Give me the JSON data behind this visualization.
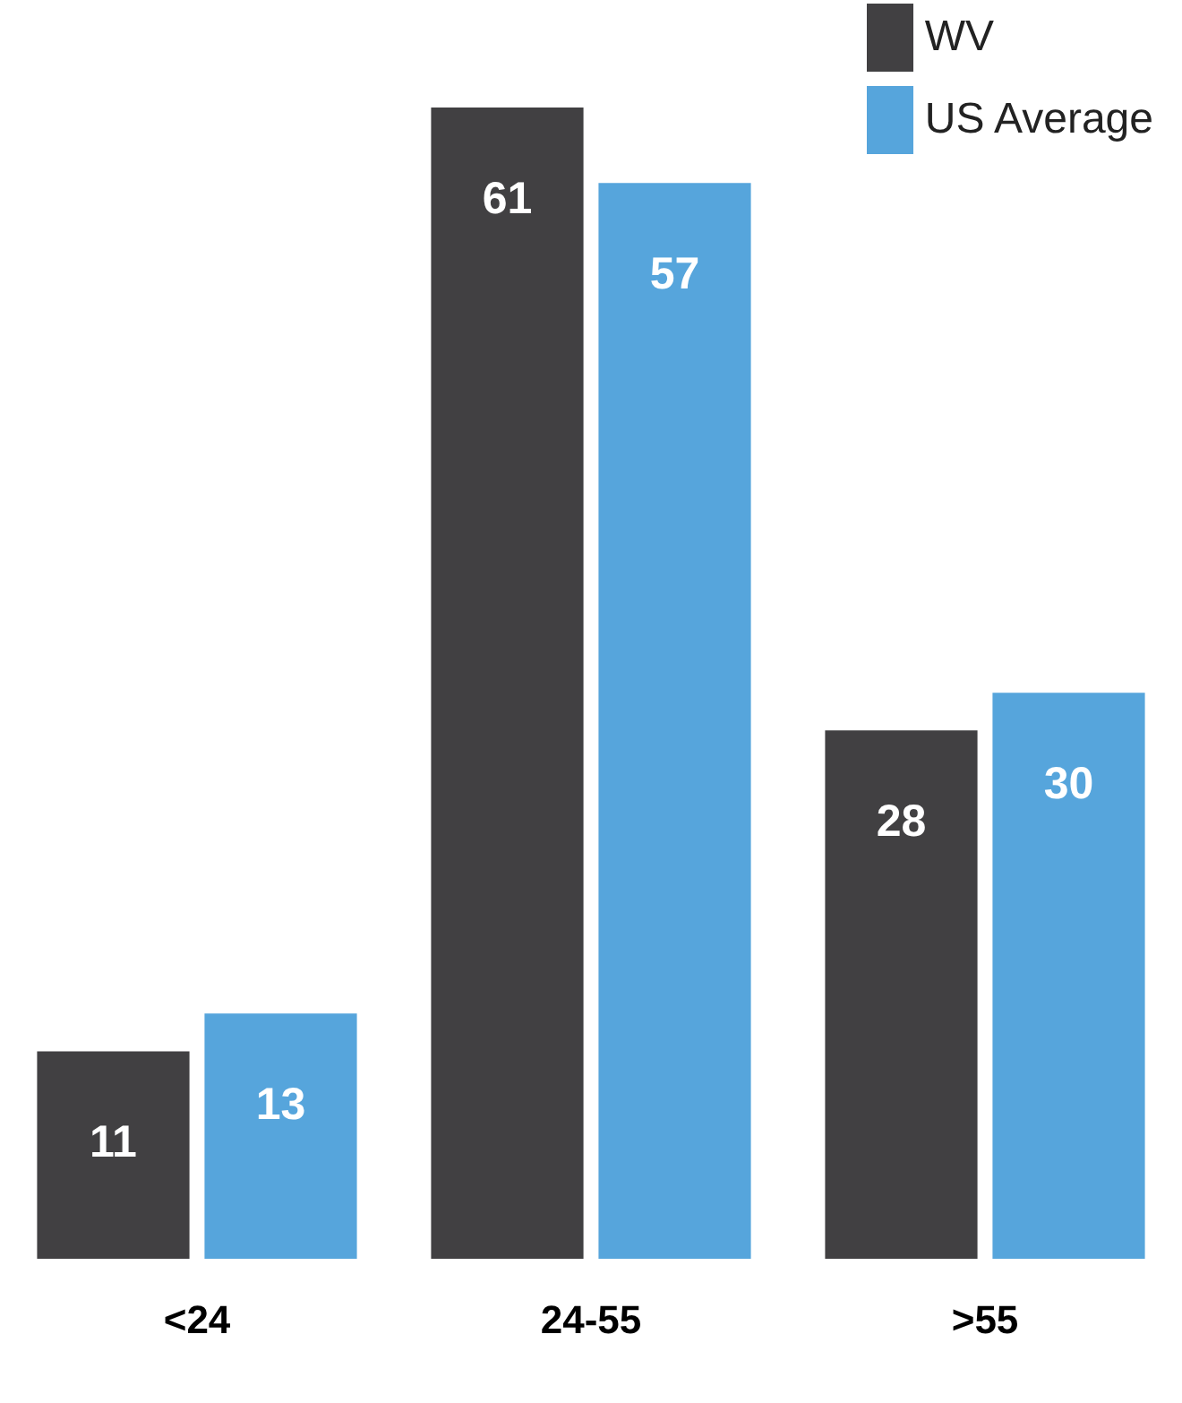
{
  "chart_data": {
    "type": "bar",
    "categories": [
      "<24",
      "24-55",
      ">55"
    ],
    "series": [
      {
        "name": "WV",
        "color": "#414042",
        "values": [
          11,
          61,
          28
        ]
      },
      {
        "name": "US Average",
        "color": "#56a5dc",
        "values": [
          13,
          57,
          30
        ]
      }
    ],
    "data_labels": true,
    "legend": "top right",
    "grid": false
  }
}
